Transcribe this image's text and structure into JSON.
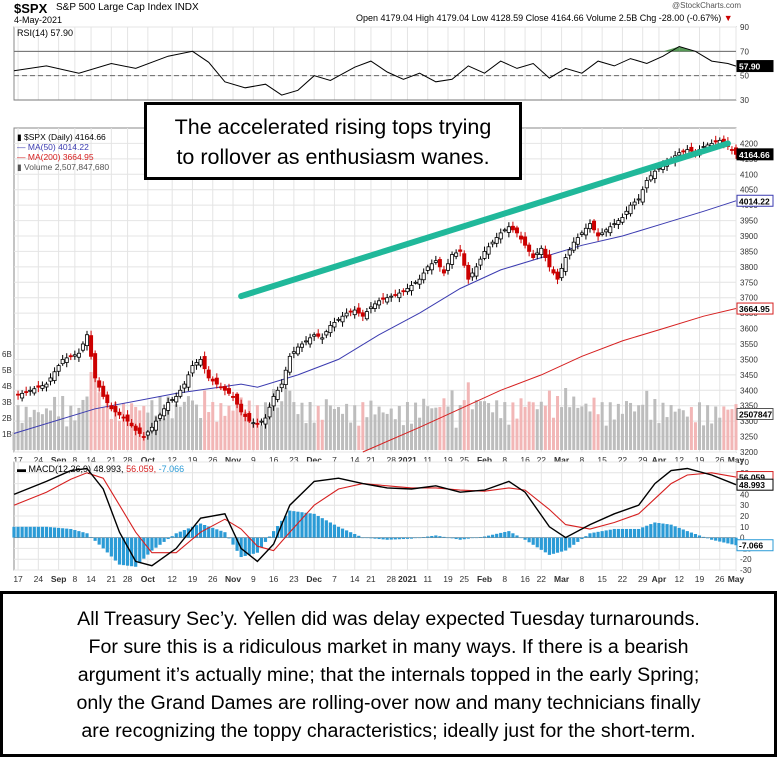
{
  "header": {
    "symbol": "$SPX",
    "name": "S&P 500 Large Cap Index",
    "exchange": "INDX",
    "date": "4-May-2021",
    "watermark": "@StockCharts.com",
    "quote": "Open 4179.04  High 4179.04  Low 4128.59  Close 4164.66  Volume 2.5B  Chg -28.00 (-0.67%)",
    "down_arrow": "▼"
  },
  "callout_top": {
    "lines": [
      "The accelerated rising tops trying",
      "to rollover as enthusiasm wanes."
    ]
  },
  "callout_bottom": {
    "lines": [
      "All Treasury Sec’y. Yellen did was delay expected Tuesday turnarounds.",
      "For sure this is a ridiculous market in many ways. If there is a bearish",
      "argument it’s actually mine; that the internals topped in the early Spring;",
      "only the Grand Dames are rolling-over now and many technicians finally",
      "are recognizing the toppy characteristics; ideally just for the short-term."
    ]
  },
  "colors": {
    "up": "#000000",
    "down": "#cc0000",
    "ma50": "#3b3bb0",
    "ma200": "#d62020",
    "volume": "#f2b6b6",
    "volume_up": "#bdbdbd",
    "macd_hist": "#2b9bd6",
    "trendline": "#20b89a",
    "rsi_fill": "#3d8a3d",
    "grid": "#e4e4e4"
  },
  "chart_data": [
    {
      "type": "line",
      "title": "RSI(14) 57.90",
      "ylim": [
        30,
        90
      ],
      "y_ticks": [
        30,
        50,
        70,
        90
      ],
      "reference_lines": [
        70,
        50,
        30
      ],
      "last_value_label": "57.90",
      "x_end": 178,
      "values": [
        [
          0,
          54
        ],
        [
          8,
          58
        ],
        [
          16,
          52
        ],
        [
          24,
          60
        ],
        [
          30,
          56
        ],
        [
          38,
          66
        ],
        [
          44,
          70
        ],
        [
          48,
          61
        ],
        [
          52,
          45
        ],
        [
          57,
          40
        ],
        [
          62,
          43
        ],
        [
          66,
          34
        ],
        [
          70,
          38
        ],
        [
          74,
          50
        ],
        [
          78,
          46
        ],
        [
          84,
          57
        ],
        [
          88,
          62
        ],
        [
          92,
          53
        ],
        [
          96,
          47
        ],
        [
          100,
          52
        ],
        [
          104,
          45
        ],
        [
          108,
          47
        ],
        [
          112,
          58
        ],
        [
          116,
          52
        ],
        [
          120,
          62
        ],
        [
          124,
          56
        ],
        [
          128,
          60
        ],
        [
          132,
          48
        ],
        [
          136,
          56
        ],
        [
          140,
          52
        ],
        [
          144,
          62
        ],
        [
          148,
          58
        ],
        [
          152,
          64
        ],
        [
          156,
          60
        ],
        [
          160,
          66
        ],
        [
          164,
          74
        ],
        [
          168,
          70
        ],
        [
          172,
          62
        ],
        [
          176,
          60
        ],
        [
          178,
          57.9
        ]
      ]
    },
    {
      "type": "candlestick",
      "title": "$SPX (Daily) 4164.66",
      "legend": [
        {
          "name": "$SPX (Daily)",
          "value": "4164.66"
        },
        {
          "name": "MA(50)",
          "value": "4014.22"
        },
        {
          "name": "MA(200)",
          "value": "3664.95"
        },
        {
          "name": "Volume",
          "value": "2,507,847,680"
        }
      ],
      "ylim": [
        3200,
        4250
      ],
      "y_ticks": [
        3200,
        3250,
        3300,
        3350,
        3400,
        3450,
        3500,
        3550,
        3600,
        3650,
        3700,
        3750,
        3800,
        3850,
        3900,
        3950,
        4000,
        4050,
        4100,
        4150,
        4200
      ],
      "price_badges": [
        {
          "label": "4164.66",
          "y": 4164.66
        },
        {
          "label": "4014.22",
          "y": 4014.22
        },
        {
          "label": "3664.95",
          "y": 3664.95
        }
      ],
      "volume_ticks": [
        "1B",
        "2B",
        "3B",
        "4B",
        "5B",
        "6B"
      ],
      "volume_badge": "2507847",
      "x_end": 178,
      "close_path": [
        [
          0,
          3380
        ],
        [
          4,
          3400
        ],
        [
          8,
          3420
        ],
        [
          12,
          3500
        ],
        [
          16,
          3520
        ],
        [
          18,
          3580
        ],
        [
          20,
          3440
        ],
        [
          22,
          3380
        ],
        [
          24,
          3340
        ],
        [
          26,
          3320
        ],
        [
          28,
          3300
        ],
        [
          30,
          3270
        ],
        [
          32,
          3250
        ],
        [
          34,
          3280
        ],
        [
          36,
          3320
        ],
        [
          38,
          3360
        ],
        [
          40,
          3380
        ],
        [
          42,
          3420
        ],
        [
          44,
          3480
        ],
        [
          46,
          3500
        ],
        [
          48,
          3440
        ],
        [
          50,
          3420
        ],
        [
          52,
          3400
        ],
        [
          54,
          3380
        ],
        [
          56,
          3330
        ],
        [
          58,
          3300
        ],
        [
          60,
          3290
        ],
        [
          62,
          3310
        ],
        [
          64,
          3380
        ],
        [
          66,
          3420
        ],
        [
          68,
          3510
        ],
        [
          70,
          3540
        ],
        [
          72,
          3560
        ],
        [
          74,
          3580
        ],
        [
          76,
          3570
        ],
        [
          78,
          3610
        ],
        [
          80,
          3630
        ],
        [
          82,
          3650
        ],
        [
          84,
          3660
        ],
        [
          86,
          3640
        ],
        [
          88,
          3670
        ],
        [
          90,
          3690
        ],
        [
          92,
          3700
        ],
        [
          94,
          3710
        ],
        [
          96,
          3720
        ],
        [
          98,
          3740
        ],
        [
          100,
          3760
        ],
        [
          102,
          3800
        ],
        [
          104,
          3820
        ],
        [
          106,
          3780
        ],
        [
          108,
          3840
        ],
        [
          110,
          3850
        ],
        [
          112,
          3760
        ],
        [
          114,
          3800
        ],
        [
          116,
          3850
        ],
        [
          118,
          3880
        ],
        [
          120,
          3910
        ],
        [
          122,
          3930
        ],
        [
          124,
          3910
        ],
        [
          126,
          3870
        ],
        [
          128,
          3830
        ],
        [
          130,
          3860
        ],
        [
          132,
          3800
        ],
        [
          134,
          3760
        ],
        [
          136,
          3830
        ],
        [
          138,
          3880
        ],
        [
          140,
          3910
        ],
        [
          142,
          3940
        ],
        [
          144,
          3900
        ],
        [
          146,
          3920
        ],
        [
          148,
          3940
        ],
        [
          150,
          3960
        ],
        [
          152,
          4000
        ],
        [
          154,
          4020
        ],
        [
          156,
          4080
        ],
        [
          158,
          4110
        ],
        [
          160,
          4130
        ],
        [
          162,
          4150
        ],
        [
          164,
          4170
        ],
        [
          166,
          4180
        ],
        [
          168,
          4170
        ],
        [
          170,
          4190
        ],
        [
          172,
          4200
        ],
        [
          174,
          4210
        ],
        [
          176,
          4190
        ],
        [
          178,
          4164.66
        ]
      ],
      "ma50": [
        [
          0,
          3260
        ],
        [
          20,
          3340
        ],
        [
          40,
          3390
        ],
        [
          56,
          3420
        ],
        [
          60,
          3410
        ],
        [
          70,
          3450
        ],
        [
          80,
          3500
        ],
        [
          90,
          3580
        ],
        [
          100,
          3650
        ],
        [
          110,
          3730
        ],
        [
          120,
          3790
        ],
        [
          130,
          3830
        ],
        [
          140,
          3870
        ],
        [
          150,
          3900
        ],
        [
          160,
          3940
        ],
        [
          170,
          3980
        ],
        [
          178,
          4014.22
        ]
      ],
      "ma200": [
        [
          86,
          3200
        ],
        [
          100,
          3280
        ],
        [
          110,
          3340
        ],
        [
          120,
          3400
        ],
        [
          130,
          3450
        ],
        [
          140,
          3510
        ],
        [
          150,
          3560
        ],
        [
          160,
          3600
        ],
        [
          170,
          3640
        ],
        [
          178,
          3664.95
        ]
      ],
      "trendline": [
        [
          56,
          3705
        ],
        [
          176,
          4200
        ]
      ]
    },
    {
      "type": "line",
      "title": "MACD(12,26,9)",
      "legend": [
        {
          "name": "MACD(12,26,9)",
          "value": "48.993"
        },
        {
          "name": "Signal",
          "value": "56.059"
        },
        {
          "name": "Histogram",
          "value": "-7.066"
        }
      ],
      "ylim": [
        -30,
        70
      ],
      "y_ticks": [
        -30,
        -20,
        -10,
        0,
        10,
        20,
        30,
        40,
        50,
        60,
        70
      ],
      "price_badges": [
        {
          "label": "56.059",
          "y": 56.059
        },
        {
          "label": "48.993",
          "y": 48.993
        },
        {
          "label": "-7.066",
          "y": -7.066
        }
      ],
      "x_end": 178,
      "macd": [
        [
          0,
          40
        ],
        [
          8,
          52
        ],
        [
          14,
          62
        ],
        [
          18,
          64
        ],
        [
          22,
          45
        ],
        [
          26,
          5
        ],
        [
          30,
          -22
        ],
        [
          34,
          -26
        ],
        [
          40,
          -10
        ],
        [
          46,
          18
        ],
        [
          52,
          22
        ],
        [
          56,
          -10
        ],
        [
          60,
          -22
        ],
        [
          64,
          -6
        ],
        [
          68,
          30
        ],
        [
          74,
          52
        ],
        [
          80,
          55
        ],
        [
          86,
          50
        ],
        [
          92,
          46
        ],
        [
          98,
          45
        ],
        [
          104,
          48
        ],
        [
          110,
          42
        ],
        [
          116,
          44
        ],
        [
          122,
          52
        ],
        [
          126,
          42
        ],
        [
          132,
          10
        ],
        [
          136,
          0
        ],
        [
          142,
          12
        ],
        [
          148,
          22
        ],
        [
          154,
          30
        ],
        [
          158,
          50
        ],
        [
          162,
          62
        ],
        [
          166,
          64
        ],
        [
          172,
          58
        ],
        [
          178,
          48.993
        ]
      ],
      "signal": [
        [
          0,
          30
        ],
        [
          8,
          42
        ],
        [
          14,
          54
        ],
        [
          18,
          60
        ],
        [
          22,
          55
        ],
        [
          26,
          30
        ],
        [
          30,
          5
        ],
        [
          34,
          -14
        ],
        [
          40,
          -14
        ],
        [
          46,
          5
        ],
        [
          52,
          17
        ],
        [
          56,
          8
        ],
        [
          60,
          -8
        ],
        [
          64,
          -12
        ],
        [
          68,
          5
        ],
        [
          74,
          30
        ],
        [
          80,
          45
        ],
        [
          86,
          50
        ],
        [
          92,
          48
        ],
        [
          98,
          46
        ],
        [
          104,
          46
        ],
        [
          110,
          44
        ],
        [
          116,
          43
        ],
        [
          122,
          46
        ],
        [
          126,
          44
        ],
        [
          132,
          26
        ],
        [
          136,
          12
        ],
        [
          142,
          8
        ],
        [
          148,
          14
        ],
        [
          154,
          22
        ],
        [
          158,
          36
        ],
        [
          162,
          50
        ],
        [
          166,
          58
        ],
        [
          172,
          60
        ],
        [
          178,
          56.059
        ]
      ],
      "histogram": [
        [
          0,
          10
        ],
        [
          8,
          10
        ],
        [
          14,
          8
        ],
        [
          18,
          4
        ],
        [
          22,
          -10
        ],
        [
          26,
          -25
        ],
        [
          30,
          -27
        ],
        [
          34,
          -12
        ],
        [
          40,
          4
        ],
        [
          46,
          13
        ],
        [
          52,
          5
        ],
        [
          56,
          -18
        ],
        [
          60,
          -14
        ],
        [
          64,
          6
        ],
        [
          68,
          25
        ],
        [
          74,
          22
        ],
        [
          80,
          10
        ],
        [
          86,
          0
        ],
        [
          92,
          -2
        ],
        [
          98,
          -1
        ],
        [
          104,
          2
        ],
        [
          110,
          -2
        ],
        [
          116,
          1
        ],
        [
          122,
          6
        ],
        [
          126,
          -2
        ],
        [
          132,
          -16
        ],
        [
          136,
          -12
        ],
        [
          142,
          4
        ],
        [
          148,
          8
        ],
        [
          154,
          8
        ],
        [
          158,
          14
        ],
        [
          162,
          12
        ],
        [
          166,
          6
        ],
        [
          172,
          -2
        ],
        [
          178,
          -7.066
        ]
      ]
    }
  ],
  "x_axis": {
    "ticks": [
      {
        "label": "17",
        "x": 1
      },
      {
        "label": "24",
        "x": 6
      },
      {
        "label": "Sep",
        "x": 11
      },
      {
        "label": "8",
        "x": 15
      },
      {
        "label": "14",
        "x": 19
      },
      {
        "label": "21",
        "x": 24
      },
      {
        "label": "28",
        "x": 28
      },
      {
        "label": "Oct",
        "x": 33
      },
      {
        "label": "12",
        "x": 39
      },
      {
        "label": "19",
        "x": 44
      },
      {
        "label": "26",
        "x": 49
      },
      {
        "label": "Nov",
        "x": 54
      },
      {
        "label": "9",
        "x": 59
      },
      {
        "label": "16",
        "x": 64
      },
      {
        "label": "23",
        "x": 69
      },
      {
        "label": "Dec",
        "x": 74
      },
      {
        "label": "7",
        "x": 79
      },
      {
        "label": "14",
        "x": 84
      },
      {
        "label": "21",
        "x": 88
      },
      {
        "label": "28",
        "x": 93
      },
      {
        "label": "2021",
        "x": 97
      },
      {
        "label": "11",
        "x": 102
      },
      {
        "label": "19",
        "x": 107
      },
      {
        "label": "25",
        "x": 111
      },
      {
        "label": "Feb",
        "x": 116
      },
      {
        "label": "8",
        "x": 121
      },
      {
        "label": "16",
        "x": 126
      },
      {
        "label": "22",
        "x": 130
      },
      {
        "label": "Mar",
        "x": 135
      },
      {
        "label": "8",
        "x": 140
      },
      {
        "label": "15",
        "x": 145
      },
      {
        "label": "22",
        "x": 150
      },
      {
        "label": "29",
        "x": 155
      },
      {
        "label": "Apr",
        "x": 159
      },
      {
        "label": "12",
        "x": 164
      },
      {
        "label": "19",
        "x": 169
      },
      {
        "label": "26",
        "x": 174
      },
      {
        "label": "May",
        "x": 178
      }
    ]
  }
}
